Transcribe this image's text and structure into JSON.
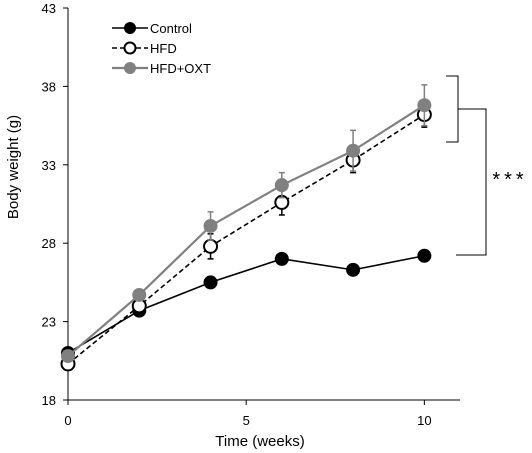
{
  "chart_data": {
    "type": "line",
    "xlabel": "Time  (weeks)",
    "ylabel": "Body weight (g)",
    "xlim": [
      0,
      11
    ],
    "ylim": [
      18,
      43
    ],
    "xticks": [
      0,
      5,
      10
    ],
    "yticks": [
      18,
      23,
      28,
      33,
      38,
      43
    ],
    "grid": false,
    "legend_position": "top-left",
    "series": [
      {
        "name": "Control",
        "color": "#000000",
        "marker": "filled-circle",
        "line_style": "solid",
        "x": [
          0,
          2,
          4,
          6,
          8,
          10
        ],
        "y": [
          21.0,
          23.7,
          25.5,
          27.0,
          26.3,
          27.2
        ],
        "error": [
          0,
          0,
          0,
          0,
          0,
          0
        ]
      },
      {
        "name": "HFD",
        "color": "#000000",
        "marker": "open-circle",
        "line_style": "dashed",
        "x": [
          0,
          2,
          4,
          6,
          8,
          10
        ],
        "y": [
          20.3,
          24.0,
          27.8,
          30.6,
          33.3,
          36.2
        ],
        "error": [
          0,
          0,
          0.8,
          0.8,
          0.8,
          0.8
        ]
      },
      {
        "name": "HFD+OXT",
        "color": "#808080",
        "marker": "filled-circle",
        "line_style": "solid",
        "x": [
          0,
          2,
          4,
          6,
          8,
          10
        ],
        "y": [
          20.8,
          24.7,
          29.1,
          31.7,
          33.9,
          36.8
        ],
        "error": [
          0,
          0.3,
          0.9,
          0.8,
          1.3,
          1.3
        ]
      }
    ],
    "annotations": [
      {
        "text": "***",
        "meaning": "significance bracket"
      }
    ]
  }
}
